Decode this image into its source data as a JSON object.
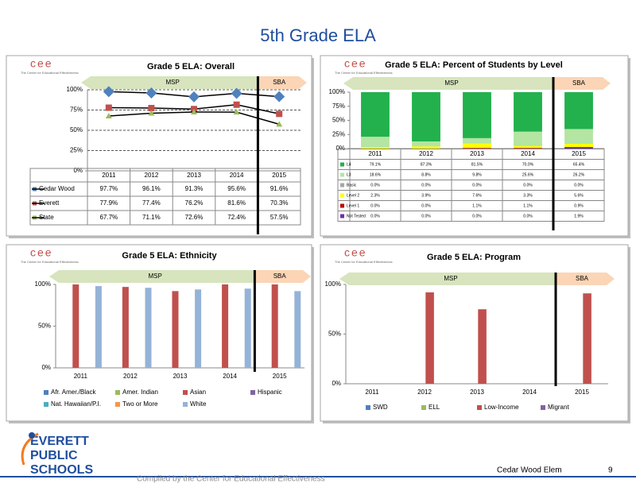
{
  "title": "5th Grade ELA",
  "logo": {
    "mark": "cee",
    "caption": "The Center for Educational Effectiveness"
  },
  "district": [
    "EVERETT",
    "PUBLIC",
    "SCHOOLS"
  ],
  "footer": {
    "credit": "Compiled by the Center for Educational Effectiveness",
    "school": "Cedar Wood Elem",
    "page": "9"
  },
  "chart_data": [
    {
      "type": "line",
      "title": "Grade 5 ELA: Overall",
      "periods": [
        "MSP",
        "SBA"
      ],
      "categories": [
        "2011",
        "2012",
        "2013",
        "2014",
        "2015"
      ],
      "ylim": [
        0,
        100
      ],
      "yticks": [
        {
          "value": 0,
          "label": "0%"
        },
        {
          "value": 25,
          "label": "25%"
        },
        {
          "value": 50,
          "label": "50%"
        },
        {
          "value": 75,
          "label": "75%"
        },
        {
          "value": 100,
          "label": "100%"
        }
      ],
      "grid": true,
      "line_color": "#000000",
      "series": [
        {
          "name": "Cedar Wood",
          "color": "#4f81bd",
          "marker": "diamond",
          "values": [
            97.7,
            96.1,
            91.3,
            95.6,
            91.6
          ],
          "value_labels": [
            "97.7%",
            "96.1%",
            "91.3%",
            "95.6%",
            "91.6%"
          ]
        },
        {
          "name": "Everett",
          "color": "#c0504d",
          "marker": "square",
          "values": [
            77.9,
            77.4,
            76.2,
            81.6,
            70.3
          ],
          "value_labels": [
            "77.9%",
            "77.4%",
            "76.2%",
            "81.6%",
            "70.3%"
          ]
        },
        {
          "name": "State",
          "color": "#9bbb59",
          "marker": "triangle",
          "values": [
            67.7,
            71.1,
            72.6,
            72.4,
            57.5
          ],
          "value_labels": [
            "67.7%",
            "71.1%",
            "72.6%",
            "72.4%",
            "57.5%"
          ]
        }
      ]
    },
    {
      "type": "stacked_bar",
      "title": "Grade 5 ELA: Percent of Students by Level",
      "periods": [
        "MSP",
        "SBA"
      ],
      "categories": [
        "2011",
        "2012",
        "2013",
        "2014",
        "2015"
      ],
      "ylim": [
        0,
        100
      ],
      "yticks": [
        {
          "value": 0,
          "label": "0%"
        },
        {
          "value": 25,
          "label": "25%"
        },
        {
          "value": 50,
          "label": "50%"
        },
        {
          "value": 75,
          "label": "75%"
        },
        {
          "value": 100,
          "label": "100%"
        }
      ],
      "grid": false,
      "series": [
        {
          "name": "L4",
          "color": "#22b14c",
          "values": [
            79.1,
            87.3,
            81.5,
            70.0,
            65.4
          ],
          "value_labels": [
            "79.1%",
            "87.3%",
            "81.5%",
            "70.0%",
            "65.4%"
          ]
        },
        {
          "name": "L3",
          "color": "#b4e5a2",
          "values": [
            18.6,
            8.8,
            9.8,
            25.6,
            26.2
          ],
          "value_labels": [
            "18.6%",
            "8.8%",
            "9.8%",
            "25.6%",
            "26.2%"
          ]
        },
        {
          "name": "Basic",
          "color": "#a6a6a6",
          "values": [
            0.0,
            0.0,
            0.0,
            0.0,
            0.0
          ],
          "value_labels": [
            "0.0%",
            "0.0%",
            "0.0%",
            "0.0%",
            "0.0%"
          ]
        },
        {
          "name": "Level 2",
          "color": "#ffff00",
          "values": [
            2.3,
            3.9,
            7.6,
            3.3,
            5.6
          ],
          "value_labels": [
            "2.3%",
            "3.9%",
            "7.6%",
            "3.3%",
            "5.6%"
          ]
        },
        {
          "name": "Level 1",
          "color": "#c00000",
          "values": [
            0.0,
            0.0,
            1.1,
            1.1,
            0.9
          ],
          "value_labels": [
            "0.0%",
            "0.0%",
            "1.1%",
            "1.1%",
            "0.9%"
          ]
        },
        {
          "name": "Not Tested",
          "color": "#7030a0",
          "values": [
            0.0,
            0.0,
            0.0,
            0.0,
            1.9
          ],
          "value_labels": [
            "0.0%",
            "0.0%",
            "0.0%",
            "0.0%",
            "1.9%"
          ]
        }
      ]
    },
    {
      "type": "grouped_bar",
      "title": "Grade 5 ELA: Ethnicity",
      "periods": [
        "MSP",
        "SBA"
      ],
      "categories": [
        "2011",
        "2012",
        "2013",
        "2014",
        "2015"
      ],
      "ylim": [
        0,
        100
      ],
      "yticks": [
        {
          "value": 0,
          "label": "0%"
        },
        {
          "value": 50,
          "label": "50%"
        },
        {
          "value": 100,
          "label": "100%"
        }
      ],
      "grid": false,
      "series": [
        {
          "name": "Afr. Amer./Black",
          "color": "#4f81bd",
          "values": [
            null,
            null,
            null,
            null,
            null
          ]
        },
        {
          "name": "Amer. Indian",
          "color": "#9bbb59",
          "values": [
            null,
            null,
            null,
            null,
            null
          ]
        },
        {
          "name": "Asian",
          "color": "#c0504d",
          "values": [
            100,
            97,
            92,
            100,
            100
          ]
        },
        {
          "name": "Hispanic",
          "color": "#8064a2",
          "values": [
            null,
            null,
            null,
            null,
            null
          ]
        },
        {
          "name": "Nat. Hawaiian/P.I.",
          "color": "#4bacc6",
          "values": [
            null,
            null,
            null,
            null,
            null
          ]
        },
        {
          "name": "Two or More",
          "color": "#f79646",
          "values": [
            null,
            null,
            null,
            null,
            null
          ]
        },
        {
          "name": "White",
          "color": "#95b3d7",
          "values": [
            98,
            96,
            94,
            95,
            92
          ]
        }
      ]
    },
    {
      "type": "grouped_bar",
      "title": "Grade 5 ELA: Program",
      "periods": [
        "MSP",
        "SBA"
      ],
      "categories": [
        "2011",
        "2012",
        "2013",
        "2014",
        "2015"
      ],
      "ylim": [
        0,
        100
      ],
      "yticks": [
        {
          "value": 0,
          "label": "0%"
        },
        {
          "value": 50,
          "label": "50%"
        },
        {
          "value": 100,
          "label": "100%"
        }
      ],
      "grid": false,
      "series": [
        {
          "name": "SWD",
          "color": "#4f81bd",
          "values": [
            null,
            null,
            null,
            null,
            null
          ]
        },
        {
          "name": "ELL",
          "color": "#9bbb59",
          "values": [
            null,
            null,
            null,
            null,
            null
          ]
        },
        {
          "name": "Low-Income",
          "color": "#c0504d",
          "values": [
            null,
            92,
            75,
            null,
            91
          ]
        },
        {
          "name": "Migrant",
          "color": "#8064a2",
          "values": [
            null,
            null,
            null,
            null,
            null
          ]
        }
      ]
    }
  ]
}
